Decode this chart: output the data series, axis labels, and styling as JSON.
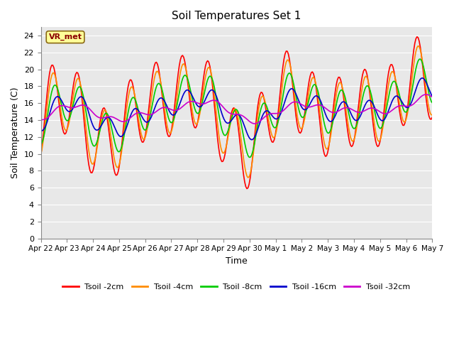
{
  "title": "Soil Temperatures Set 1",
  "xlabel": "Time",
  "ylabel": "Soil Temperature (C)",
  "ylim": [
    0,
    25
  ],
  "yticks": [
    0,
    2,
    4,
    6,
    8,
    10,
    12,
    14,
    16,
    18,
    20,
    22,
    24
  ],
  "bg_color": "#e8e8e8",
  "fig_color": "#ffffff",
  "annotation_text": "VR_met",
  "annotation_color": "#8b0000",
  "annotation_bg": "#ffff99",
  "colors": {
    "Tsoil -2cm": "#ff0000",
    "Tsoil -4cm": "#ff8c00",
    "Tsoil -8cm": "#00cc00",
    "Tsoil -16cm": "#0000cc",
    "Tsoil -32cm": "#cc00cc"
  },
  "x_labels": [
    "Apr 22",
    "Apr 23",
    "Apr 24",
    "Apr 25",
    "Apr 26",
    "Apr 27",
    "Apr 28",
    "Apr 29",
    "Apr 30",
    "May 1",
    "May 2",
    "May 3",
    "May 4",
    "May 5",
    "May 6",
    "May 7"
  ],
  "num_days": 15,
  "points_per_day": 24
}
